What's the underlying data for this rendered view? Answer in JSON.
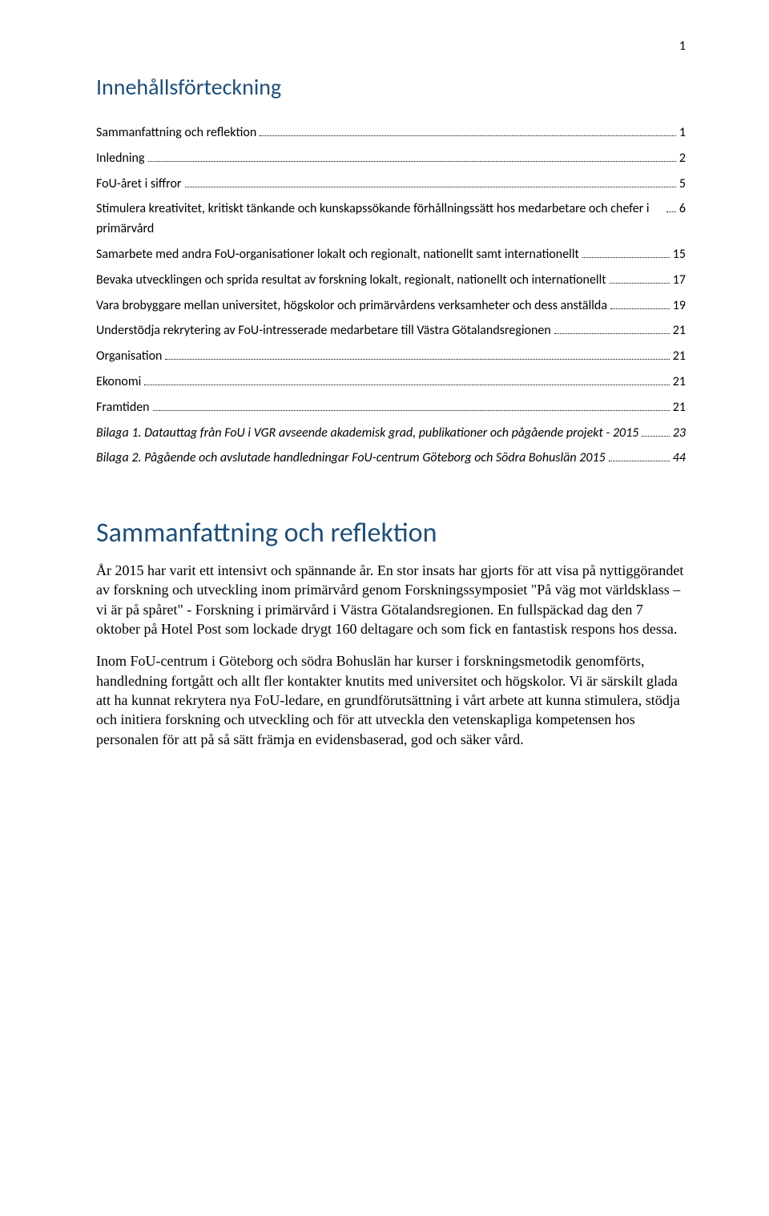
{
  "page_number": "1",
  "toc_title": "Innehållsförteckning",
  "toc": [
    {
      "label": "Sammanfattning och reflektion",
      "page": "1",
      "italic": false
    },
    {
      "label": "Inledning",
      "page": "2",
      "italic": false
    },
    {
      "label": "FoU-året i siffror",
      "page": "5",
      "italic": false
    },
    {
      "label": "Stimulera kreativitet, kritiskt tänkande och kunskapssökande förhållningssätt hos medarbetare och chefer i primärvård",
      "page": "6",
      "italic": false
    },
    {
      "label": "Samarbete med andra FoU-organisationer lokalt och regionalt, nationellt samt internationellt",
      "page": "15",
      "italic": false
    },
    {
      "label": "Bevaka utvecklingen och sprida resultat av forskning lokalt, regionalt, nationellt och internationellt",
      "page": "17",
      "italic": false
    },
    {
      "label": "Vara brobyggare mellan universitet, högskolor och primärvårdens verksamheter och dess anställda",
      "page": "19",
      "italic": false
    },
    {
      "label": "Understödja rekrytering av FoU-intresserade medarbetare till Västra Götalandsregionen",
      "page": "21",
      "italic": false
    },
    {
      "label": "Organisation",
      "page": "21",
      "italic": false
    },
    {
      "label": "Ekonomi",
      "page": "21",
      "italic": false
    },
    {
      "label": "Framtiden",
      "page": "21",
      "italic": false
    },
    {
      "label": "Bilaga 1. Datauttag från FoU i VGR avseende akademisk grad, publikationer och pågående projekt - 2015",
      "page": "23",
      "italic": true
    },
    {
      "label": "Bilaga 2. Pågående och avslutade handledningar  FoU-centrum Göteborg och Södra Bohuslän 2015",
      "page": "44",
      "italic": true
    }
  ],
  "section_heading": "Sammanfattning och reflektion",
  "para1": "År 2015 har varit ett intensivt och spännande år. En stor insats har gjorts för att visa på nyttiggörandet av forskning och utveckling inom primärvård genom Forskningssymposiet \"På väg mot världsklass – vi är på spåret\" - Forskning i primärvård i Västra Götalandsregionen. En fullspäckad dag den 7 oktober på Hotel Post som lockade drygt 160 deltagare och som fick en fantastisk respons hos dessa.",
  "para2": "Inom FoU-centrum i Göteborg och södra Bohuslän har kurser i forskningsmetodik genomförts, handledning fortgått och allt fler kontakter knutits med universitet och högskolor. Vi är särskilt glada att ha kunnat rekrytera nya FoU-ledare, en grundförutsättning i vårt arbete att kunna stimulera, stödja och initiera forskning och utveckling och för att utveckla den vetenskapliga kompetensen hos personalen för att på så sätt främja en evidensbaserad, god och säker vård.",
  "colors": {
    "heading": "#1f4e79",
    "text": "#000000",
    "background": "#ffffff"
  }
}
